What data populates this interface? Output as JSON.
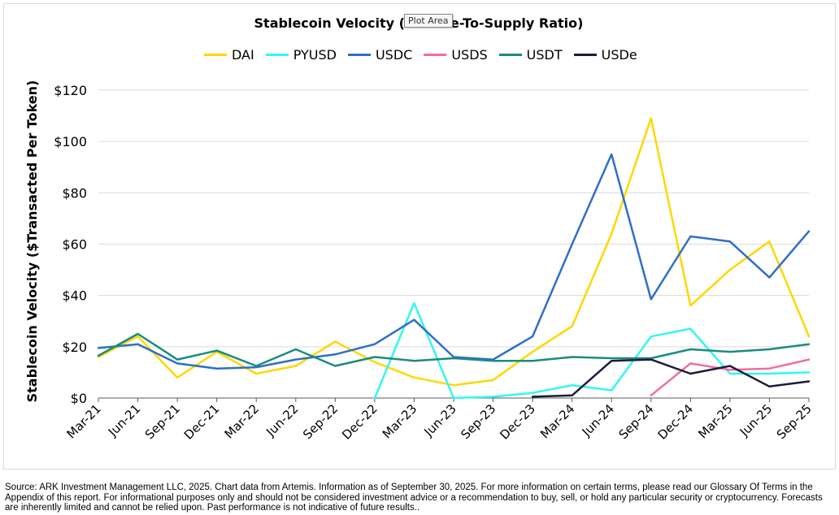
{
  "tooltip": "Plot Area",
  "source_note": "Source: ARK Investment Management LLC, 2025. Chart data from Artemis. Information as of September 30, 2025. For more information on certain terms, please read our Glossary Of Terms in the Appendix of this report. For informational purposes only and should not be considered investment advice or a recommendation to buy, sell, or hold any particular security or cryptocurrency. Forecasts are inherently limited and cannot be relied upon. Past performance is not indicative of future results..",
  "chart_data": {
    "type": "line",
    "title": "Stablecoin Velocity (Volume-To-Supply Ratio)",
    "xlabel": "",
    "ylabel": "Stablecoin Velocity ($Transacted Per Token)",
    "ylim": [
      0,
      120
    ],
    "yticks": [
      0,
      20,
      40,
      60,
      80,
      100,
      120
    ],
    "ytick_labels": [
      "$0",
      "$20",
      "$40",
      "$60",
      "$80",
      "$100",
      "$120"
    ],
    "grid": "horizontal",
    "legend_position": "top",
    "categories": [
      "Mar-21",
      "Jun-21",
      "Sep-21",
      "Dec-21",
      "Mar-22",
      "Jun-22",
      "Sep-22",
      "Dec-22",
      "Mar-23",
      "Jun-23",
      "Sep-23",
      "Dec-23",
      "Mar-24",
      "Jun-24",
      "Sep-24",
      "Dec-24",
      "Mar-25",
      "Jun-25",
      "Sep-25"
    ],
    "series": [
      {
        "name": "DAI",
        "color": "#FFD700",
        "values": [
          16,
          24,
          8,
          18,
          9.5,
          12.5,
          22,
          14,
          8,
          5,
          7,
          18,
          28,
          64,
          109,
          36,
          50,
          61,
          24
        ]
      },
      {
        "name": "PYUSD",
        "color": "#33F5F5",
        "values": [
          null,
          null,
          null,
          null,
          null,
          null,
          null,
          0,
          37,
          0,
          0.5,
          2,
          5,
          3,
          24,
          27,
          9.5,
          9.5,
          10
        ]
      },
      {
        "name": "USDC",
        "color": "#2E6FC8",
        "values": [
          19.5,
          21,
          13.5,
          11.5,
          12,
          15,
          17,
          21,
          30.5,
          16,
          15,
          24,
          60,
          95,
          38.5,
          63,
          61,
          47,
          65
        ]
      },
      {
        "name": "USDS",
        "color": "#F06EA0",
        "values": [
          null,
          null,
          null,
          null,
          null,
          null,
          null,
          null,
          null,
          null,
          null,
          null,
          null,
          null,
          1,
          13.5,
          11,
          11.5,
          15
        ]
      },
      {
        "name": "USDT",
        "color": "#1A8C7E",
        "values": [
          16.5,
          25,
          15,
          18.5,
          12.5,
          19,
          12.5,
          16,
          14.5,
          15.5,
          14.5,
          14.5,
          16,
          15.5,
          15.5,
          19,
          18,
          19,
          21
        ]
      },
      {
        "name": "USDe",
        "color": "#1C1C3C",
        "values": [
          null,
          null,
          null,
          null,
          null,
          null,
          null,
          null,
          null,
          null,
          null,
          0.5,
          1,
          14.5,
          15,
          9.5,
          12.5,
          4.5,
          6.5
        ]
      }
    ]
  }
}
